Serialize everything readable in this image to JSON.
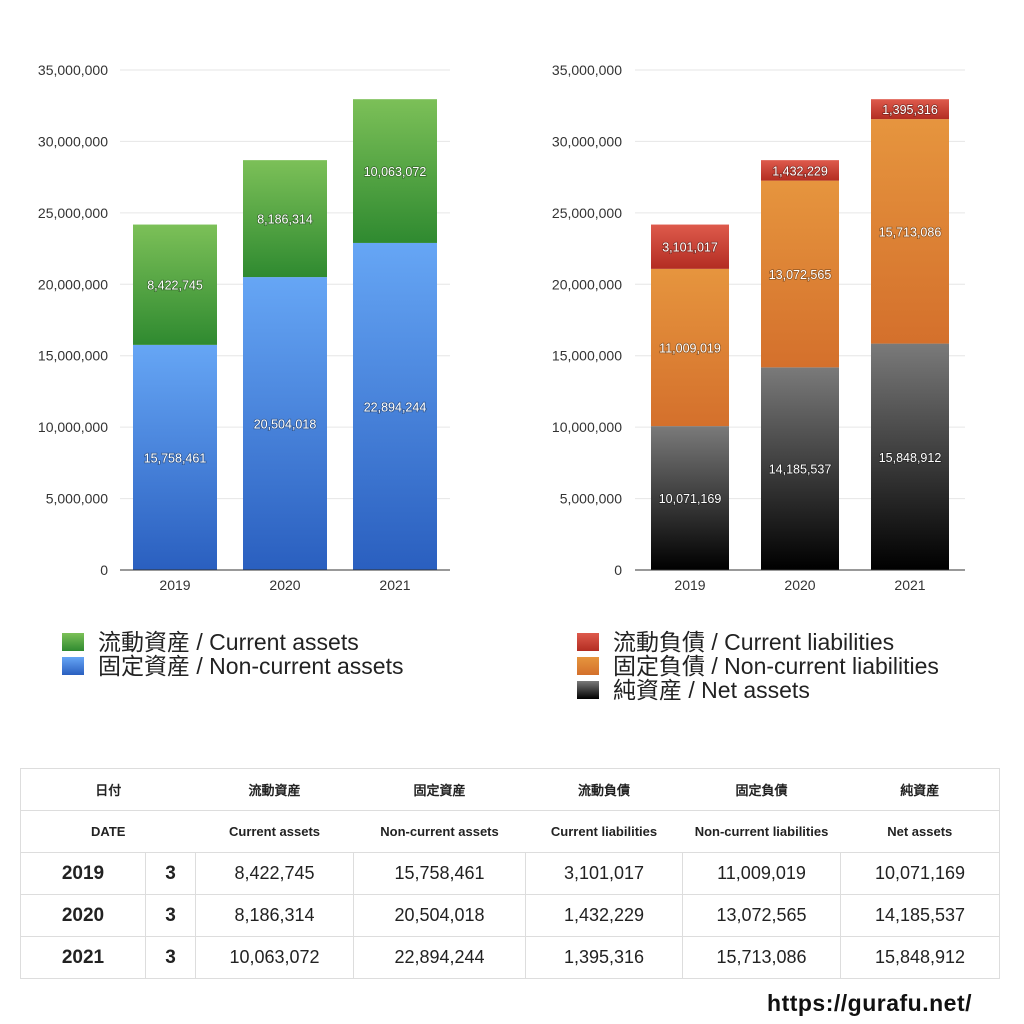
{
  "chart_data": [
    {
      "type": "bar",
      "stacked": true,
      "categories": [
        "2019",
        "2020",
        "2021"
      ],
      "ylim": [
        0,
        35000000
      ],
      "yticks": [
        "0",
        "5,000,000",
        "10,000,000",
        "15,000,000",
        "20,000,000",
        "25,000,000",
        "30,000,000",
        "35,000,000"
      ],
      "series": [
        {
          "name": "固定資産 / Non-current assets",
          "values": [
            15758461,
            20504018,
            22894244
          ],
          "labels": [
            "15,758,461",
            "20,504,018",
            "22,894,244"
          ],
          "color": "#3f7fd8"
        },
        {
          "name": "流動資産 / Current assets",
          "values": [
            8422745,
            8186314,
            10063072
          ],
          "labels": [
            "8,422,745",
            "8,186,314",
            "10,063,072"
          ],
          "color": "#4a9a3c"
        }
      ],
      "legend": [
        "流動資産 / Current assets",
        "固定資産 / Non-current assets"
      ]
    },
    {
      "type": "bar",
      "stacked": true,
      "categories": [
        "2019",
        "2020",
        "2021"
      ],
      "ylim": [
        0,
        35000000
      ],
      "yticks": [
        "0",
        "5,000,000",
        "10,000,000",
        "15,000,000",
        "20,000,000",
        "25,000,000",
        "30,000,000",
        "35,000,000"
      ],
      "series": [
        {
          "name": "純資産 / Net assets",
          "values": [
            10071169,
            14185537,
            15848912
          ],
          "labels": [
            "10,071,169",
            "14,185,537",
            "15,848,912"
          ],
          "color": "#333333"
        },
        {
          "name": "固定負債 / Non-current liabilities",
          "values": [
            11009019,
            13072565,
            15713086
          ],
          "labels": [
            "11,009,019",
            "13,072,565",
            "15,713,086"
          ],
          "color": "#e08a38"
        },
        {
          "name": "流動負債 / Current liabilities",
          "values": [
            3101017,
            1432229,
            1395316
          ],
          "labels": [
            "3,101,017",
            "1,432,229",
            "1,395,316"
          ],
          "color": "#c9453a"
        }
      ],
      "legend": [
        "流動負債 / Current liabilities",
        "固定負債 / Non-current liabilities",
        "純資産 / Net assets"
      ]
    }
  ],
  "table": {
    "header_jp": [
      "日付",
      "流動資産",
      "固定資産",
      "流動負債",
      "固定負債",
      "純資産"
    ],
    "header_en": [
      "DATE",
      "Current assets",
      "Non-current assets",
      "Current liabilities",
      "Non-current liabilities",
      "Net assets"
    ],
    "rows": [
      [
        "2019",
        "3",
        "8,422,745",
        "15,758,461",
        "3,101,017",
        "11,009,019",
        "10,071,169"
      ],
      [
        "2020",
        "3",
        "8,186,314",
        "20,504,018",
        "1,432,229",
        "13,072,565",
        "14,185,537"
      ],
      [
        "2021",
        "3",
        "10,063,072",
        "22,894,244",
        "1,395,316",
        "15,713,086",
        "15,848,912"
      ]
    ]
  },
  "footer_url": "https://gurafu.net/"
}
